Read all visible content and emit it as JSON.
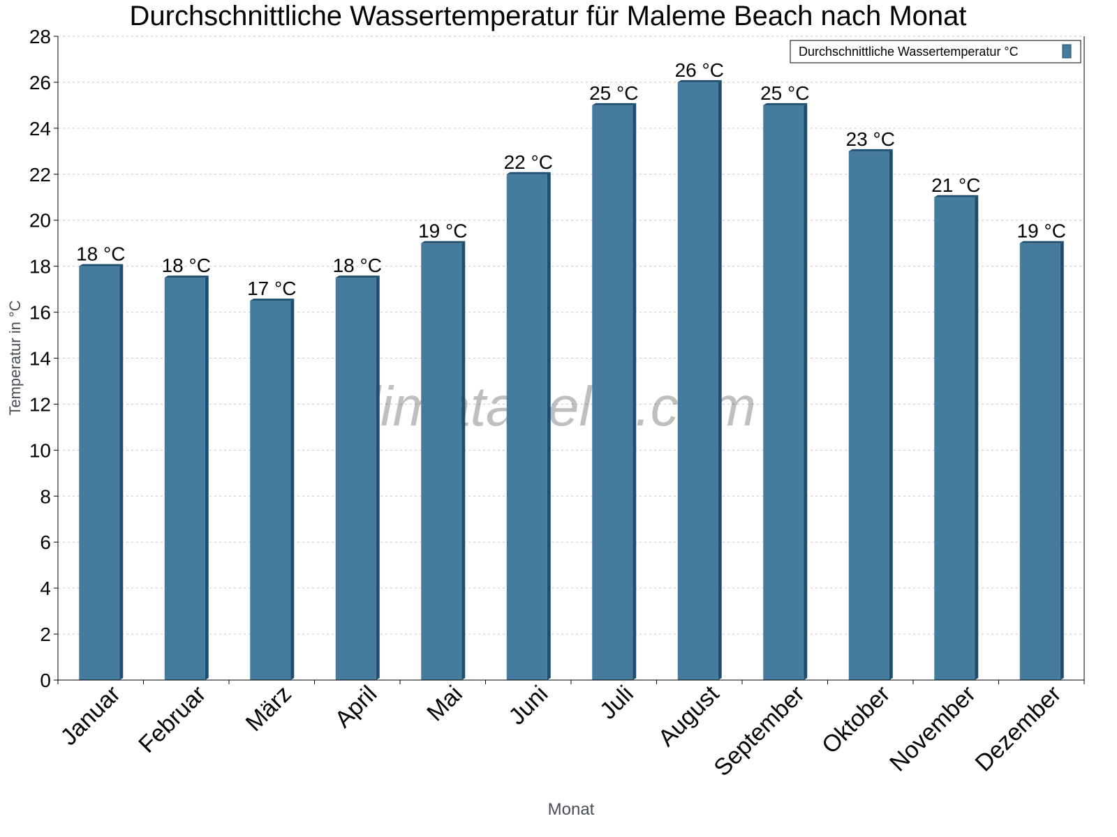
{
  "chart_data": {
    "type": "bar",
    "title": "Durchschnittliche Wassertemperatur für Maleme Beach nach Monat",
    "xlabel": "Monat",
    "ylabel": "Temperatur in °C",
    "ylim": [
      0,
      28
    ],
    "yticks": [
      0,
      2,
      4,
      6,
      8,
      10,
      12,
      14,
      16,
      18,
      20,
      22,
      24,
      26,
      28
    ],
    "grid": true,
    "legend_position": "top-right",
    "categories": [
      "Januar",
      "Februar",
      "März",
      "April",
      "Mai",
      "Juni",
      "Juli",
      "August",
      "September",
      "Oktober",
      "November",
      "Dezember"
    ],
    "series": [
      {
        "name": "Durchschnittliche Wassertemperatur °C",
        "color": "#457b9d",
        "side_color": "#1d4e6f",
        "values": [
          18,
          17.5,
          16.5,
          17.5,
          19,
          22,
          25,
          26,
          25,
          23,
          21,
          19
        ],
        "labels": [
          "18 °C",
          "18 °C",
          "17 °C",
          "18 °C",
          "19 °C",
          "22 °C",
          "25 °C",
          "26 °C",
          "25 °C",
          "23 °C",
          "21 °C",
          "19 °C"
        ]
      }
    ],
    "watermark": "klimatabelle.com"
  }
}
